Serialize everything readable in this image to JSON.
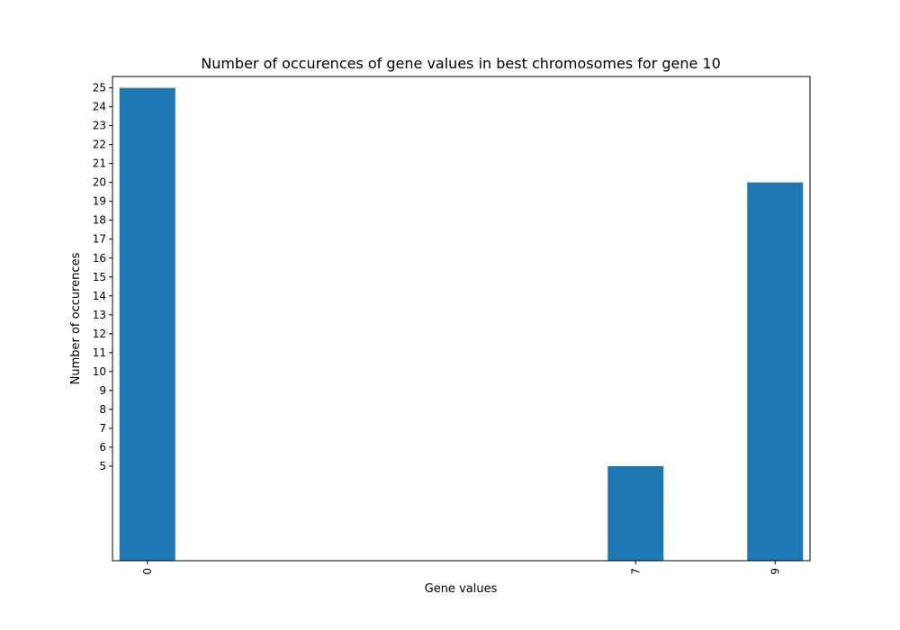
{
  "chart_data": {
    "type": "bar",
    "title": "Number of occurences of gene values in best chromosomes for gene 10",
    "xlabel": "Gene values",
    "ylabel": "Number of occurences",
    "x": [
      0,
      7,
      9
    ],
    "x_tick_labels": [
      "0",
      "7",
      "9"
    ],
    "values": [
      25,
      5,
      20
    ],
    "y_ticks": [
      5,
      6,
      7,
      8,
      9,
      10,
      11,
      12,
      13,
      14,
      15,
      16,
      17,
      18,
      19,
      20,
      21,
      22,
      23,
      24,
      25
    ],
    "xlim": [
      -0.5,
      9.5
    ],
    "ylim": [
      0,
      25.6
    ],
    "bar_width": 0.8,
    "bar_color": "#1f77b4",
    "grid": false,
    "legend": "none"
  }
}
